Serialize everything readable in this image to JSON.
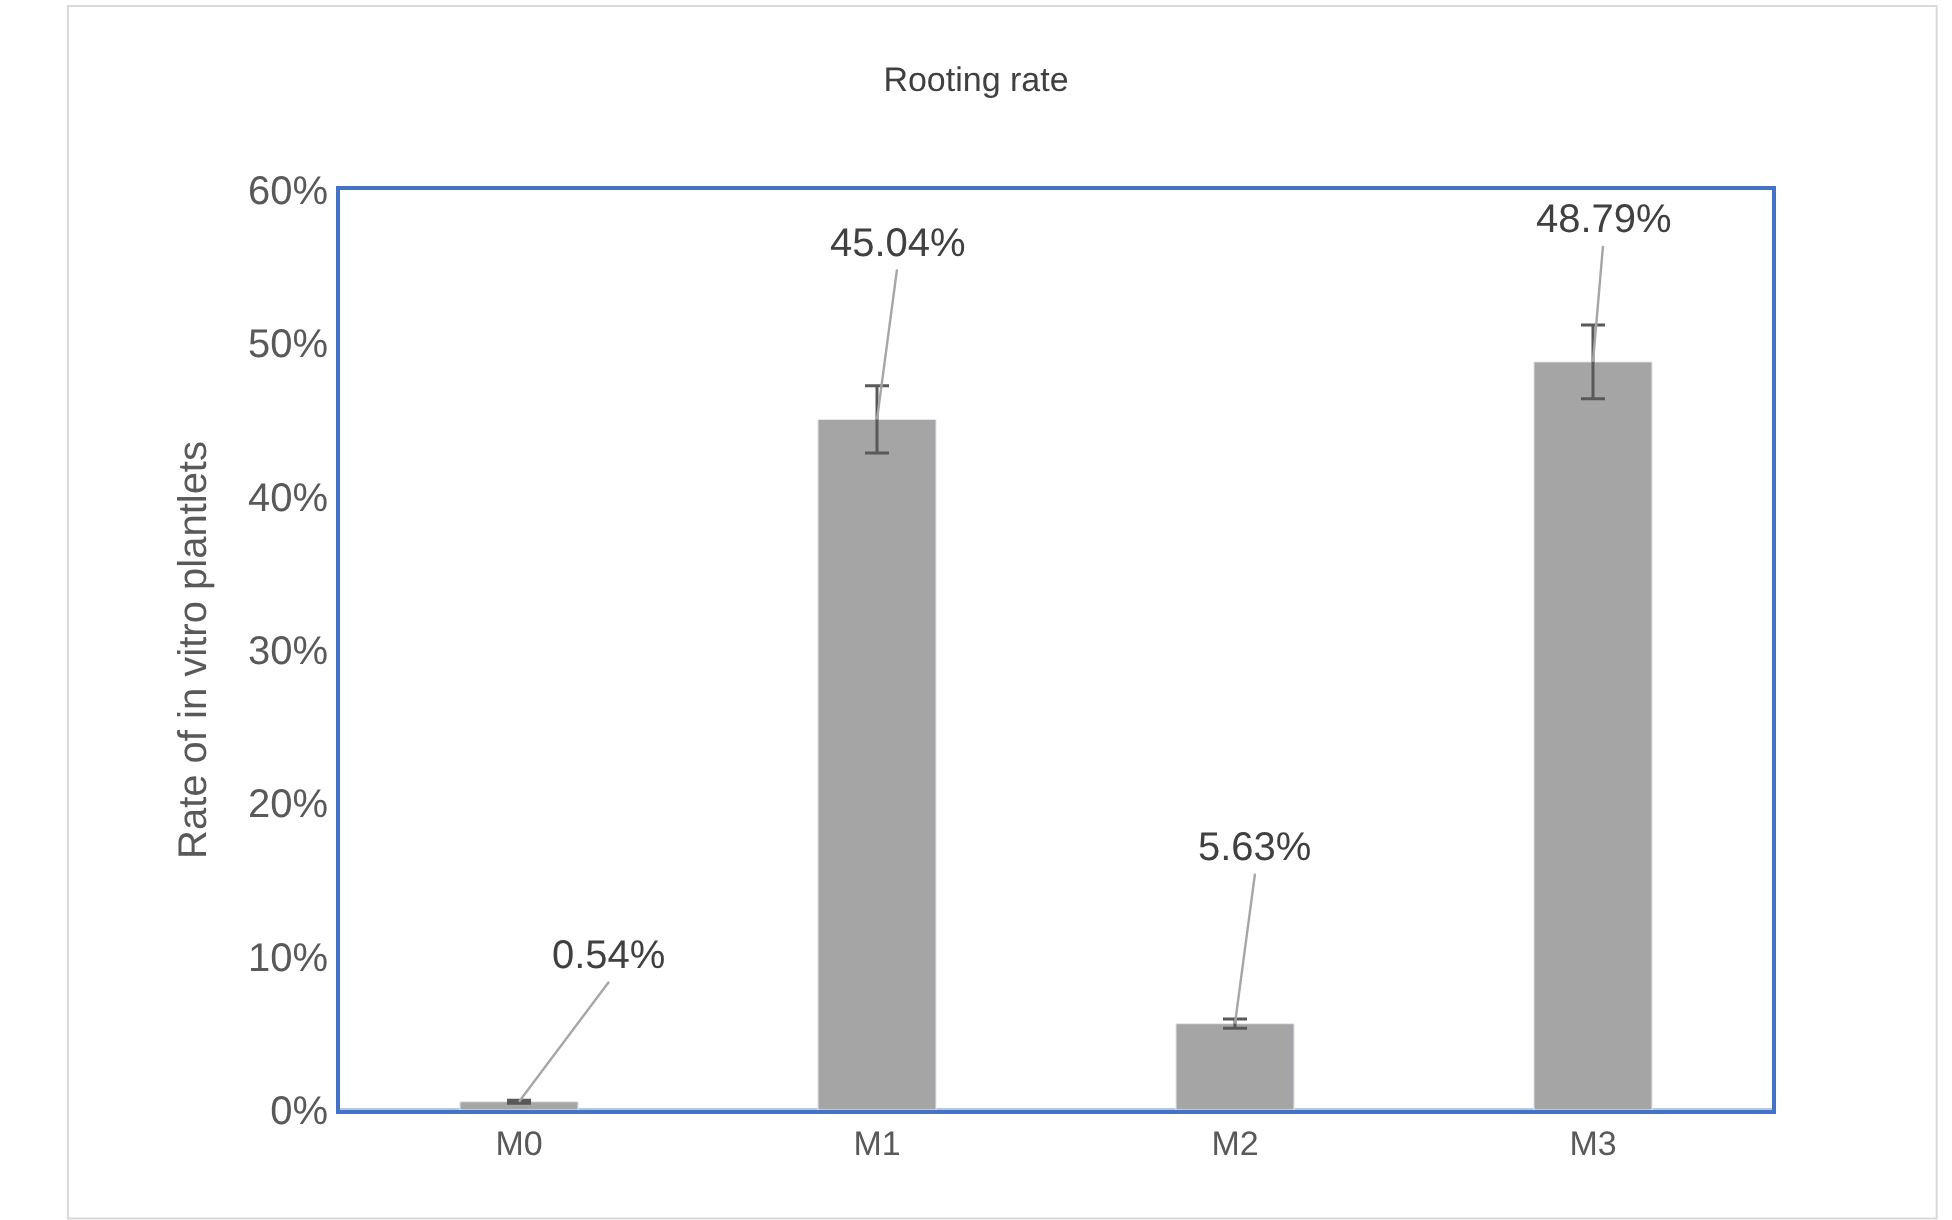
{
  "chart_data": {
    "type": "bar",
    "title": "Rooting rate",
    "ylabel": "Rate of in vitro plantlets",
    "categories": [
      "M0",
      "M1",
      "M2",
      "M3"
    ],
    "values": [
      0.54,
      45.04,
      5.63,
      48.79
    ],
    "errors": [
      0.1,
      2.2,
      0.3,
      2.4
    ],
    "value_labels": [
      "0.54%",
      "45.04%",
      "5.63%",
      "48.79%"
    ],
    "color": "#a5a5a5",
    "ylim": [
      0,
      60
    ],
    "yticks": [
      {
        "value": 0,
        "label": "0%"
      },
      {
        "value": 10,
        "label": "10%"
      },
      {
        "value": 20,
        "label": "20%"
      },
      {
        "value": 30,
        "label": "30%"
      },
      {
        "value": 40,
        "label": "40%"
      },
      {
        "value": 50,
        "label": "50%"
      },
      {
        "value": 60,
        "label": "60%"
      }
    ],
    "legend": false
  }
}
